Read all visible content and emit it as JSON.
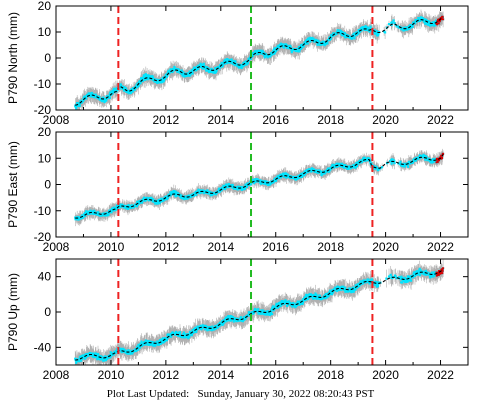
{
  "footer": {
    "label": "Plot Last Updated:",
    "timestamp": "Sunday, January 30, 2022 08:20:43 PST"
  },
  "colors": {
    "error_bars": "#b0b0b0",
    "daily_points": "#00e5ff",
    "recent_points": "#dd0000",
    "model_line": "#000000",
    "offset_earthquake": "#ee2222",
    "offset_equipment": "#22bb22"
  },
  "chart_data": [
    {
      "type": "scatter",
      "ylabel": "P790 North (mm)",
      "xlim": [
        2008,
        2023
      ],
      "ylim": [
        -20,
        20
      ],
      "xticks": [
        2008,
        2010,
        2012,
        2014,
        2016,
        2018,
        2020,
        2022
      ],
      "yticks": [
        -20,
        -10,
        0,
        10,
        20
      ],
      "x_tick_labels_shown": true,
      "series": {
        "x": [
          2008.7,
          2009.0,
          2009.5,
          2010.0,
          2010.2,
          2010.3,
          2010.6,
          2011.0,
          2011.5,
          2012.0,
          2012.5,
          2013.0,
          2013.5,
          2014.0,
          2014.5,
          2015.0,
          2015.5,
          2016.0,
          2016.5,
          2017.0,
          2017.5,
          2018.0,
          2018.5,
          2019.0,
          2019.4,
          2019.5,
          2019.8,
          2020.0,
          2020.3,
          2020.5,
          2021.0,
          2021.5,
          2022.0,
          2022.1
        ],
        "y": [
          -17,
          -16,
          -15,
          -14,
          -14,
          -12,
          -12,
          -10,
          -8,
          -7,
          -5,
          -5,
          -4,
          -3,
          -2,
          -1,
          2,
          3,
          4,
          5,
          6,
          8,
          9,
          10,
          10,
          11,
          11,
          11,
          12,
          12,
          13,
          14,
          15,
          15
        ]
      },
      "seasonal_amplitude": 1.5,
      "noise": 2.5,
      "model_slope_mm_per_yr": 2.05,
      "offsets": [
        {
          "year": 2010.27,
          "kind": "earthquake"
        },
        {
          "year": 2015.1,
          "kind": "equipment"
        },
        {
          "year": 2019.52,
          "kind": "earthquake"
        }
      ]
    },
    {
      "type": "scatter",
      "ylabel": "P790 East (mm)",
      "xlim": [
        2008,
        2023
      ],
      "ylim": [
        -20,
        20
      ],
      "xticks": [
        2008,
        2010,
        2012,
        2014,
        2016,
        2018,
        2020,
        2022
      ],
      "yticks": [
        -20,
        -10,
        0,
        10,
        20
      ],
      "x_tick_labels_shown": true,
      "series": {
        "x": [
          2008.7,
          2009.0,
          2009.5,
          2010.0,
          2010.2,
          2010.3,
          2010.6,
          2011.0,
          2011.5,
          2012.0,
          2012.5,
          2013.0,
          2013.5,
          2014.0,
          2014.5,
          2015.0,
          2015.5,
          2016.0,
          2016.5,
          2017.0,
          2017.5,
          2018.0,
          2018.5,
          2019.0,
          2019.4,
          2019.5,
          2019.8,
          2020.0,
          2020.3,
          2020.5,
          2021.0,
          2021.5,
          2022.0,
          2022.1
        ],
        "y": [
          -12,
          -12,
          -11,
          -10,
          -10,
          -9,
          -8,
          -7,
          -6,
          -5,
          -4,
          -4,
          -3,
          -2,
          -1,
          0,
          1,
          2,
          3,
          4,
          5,
          6,
          7,
          8,
          9,
          7,
          7,
          8,
          8,
          8,
          9,
          10,
          10,
          11
        ]
      },
      "seasonal_amplitude": 1.0,
      "noise": 2.0,
      "model_slope_mm_per_yr": 1.6,
      "offsets": [
        {
          "year": 2010.27,
          "kind": "earthquake"
        },
        {
          "year": 2015.1,
          "kind": "equipment"
        },
        {
          "year": 2019.52,
          "kind": "earthquake"
        }
      ]
    },
    {
      "type": "scatter",
      "ylabel": "P790 Up (mm)",
      "xlim": [
        2008,
        2023
      ],
      "ylim": [
        -60,
        60
      ],
      "xticks": [
        2008,
        2010,
        2012,
        2014,
        2016,
        2018,
        2020,
        2022
      ],
      "yticks": [
        -40,
        0,
        40
      ],
      "x_tick_labels_shown": true,
      "series": {
        "x": [
          2008.7,
          2009.0,
          2009.5,
          2010.0,
          2010.2,
          2010.3,
          2010.6,
          2011.0,
          2011.5,
          2012.0,
          2012.5,
          2013.0,
          2013.5,
          2014.0,
          2014.5,
          2015.0,
          2015.5,
          2016.0,
          2016.5,
          2017.0,
          2017.5,
          2018.0,
          2018.5,
          2019.0,
          2019.4,
          2019.5,
          2019.8,
          2020.0,
          2020.3,
          2020.5,
          2021.0,
          2021.5,
          2022.0,
          2022.1
        ],
        "y": [
          -52,
          -51,
          -50,
          -49,
          -48,
          -46,
          -44,
          -40,
          -35,
          -30,
          -26,
          -22,
          -18,
          -13,
          -8,
          -4,
          0,
          5,
          9,
          13,
          17,
          22,
          26,
          30,
          33,
          34,
          35,
          36,
          37,
          38,
          41,
          44,
          46,
          47
        ]
      },
      "seasonal_amplitude": 3.0,
      "noise": 8.0,
      "model_slope_mm_per_yr": 7.3,
      "offsets": [
        {
          "year": 2010.27,
          "kind": "earthquake"
        },
        {
          "year": 2015.1,
          "kind": "equipment"
        },
        {
          "year": 2019.52,
          "kind": "earthquake"
        }
      ]
    }
  ]
}
